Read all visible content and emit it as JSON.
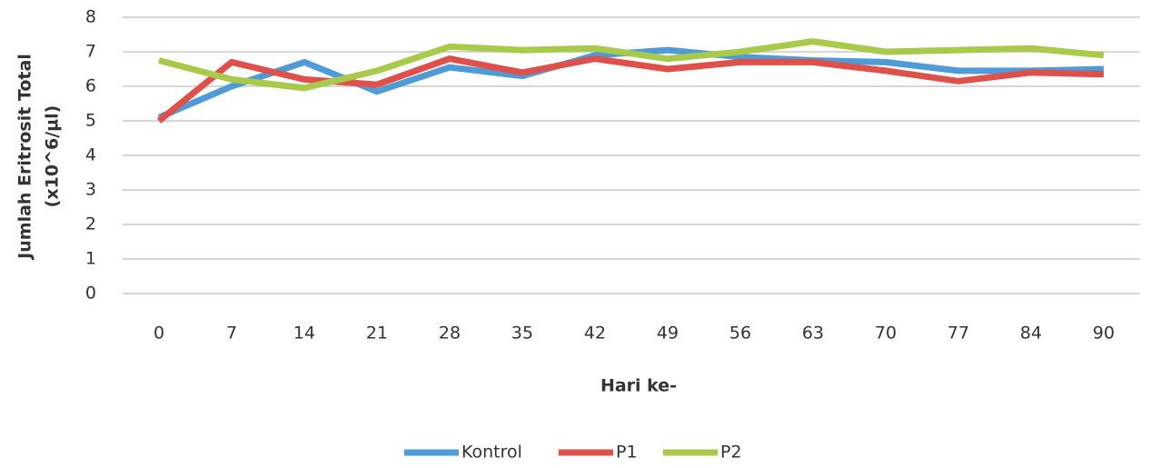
{
  "chart_data": {
    "type": "line",
    "categories": [
      "0",
      "7",
      "14",
      "21",
      "28",
      "35",
      "42",
      "49",
      "56",
      "63",
      "70",
      "77",
      "84",
      "90"
    ],
    "series": [
      {
        "name": "Kontrol",
        "color": "#4e9bd8",
        "values": [
          5.1,
          6.0,
          6.7,
          5.85,
          6.55,
          6.3,
          6.9,
          7.05,
          6.85,
          6.75,
          6.7,
          6.45,
          6.45,
          6.5
        ]
      },
      {
        "name": "P1",
        "color": "#e0504a",
        "values": [
          5.0,
          6.7,
          6.2,
          6.05,
          6.8,
          6.4,
          6.8,
          6.5,
          6.7,
          6.7,
          6.45,
          6.15,
          6.4,
          6.35
        ]
      },
      {
        "name": "P2",
        "color": "#a8c94a",
        "values": [
          6.75,
          6.2,
          5.95,
          6.45,
          7.15,
          7.05,
          7.1,
          6.8,
          7.0,
          7.3,
          7.0,
          7.05,
          7.1,
          6.9
        ]
      }
    ],
    "x_label": "Hari ke-",
    "y_label": [
      "Jumlah Eritrosit Total",
      "(x10^6/µl)"
    ],
    "ylim": [
      0,
      8
    ],
    "yticks": [
      0,
      1,
      2,
      3,
      4,
      5,
      6,
      7,
      8
    ],
    "grid": true,
    "legend": "bottom"
  }
}
